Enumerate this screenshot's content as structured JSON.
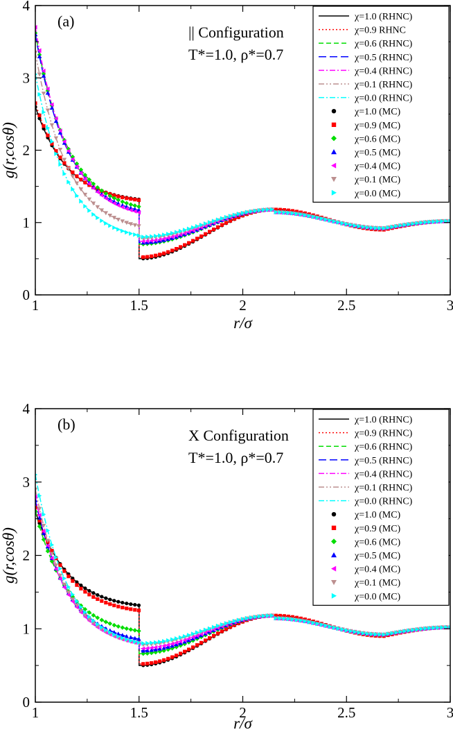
{
  "chart_data": [
    {
      "type": "line",
      "panel_label": "(a)",
      "annotation_line1": "|| Configuration",
      "annotation_line2": "T*=1.0, ρ*=0.7",
      "xlabel": "r/σ",
      "ylabel": "g(r,cosθ)",
      "xlim": [
        1,
        3
      ],
      "ylim": [
        0,
        4
      ],
      "x_ticks": [
        1,
        1.5,
        2,
        2.5,
        3
      ],
      "x_tick_labels": [
        "1",
        "1.5",
        "2",
        "2.5",
        "3"
      ],
      "y_ticks": [
        0,
        1,
        2,
        3,
        4
      ],
      "y_tick_labels": [
        "0",
        "1",
        "2",
        "3",
        "4"
      ],
      "legend_position": "top-right",
      "series": [
        {
          "name": "χ=1.0 (RHNC)",
          "kind": "line",
          "color": "#000000",
          "dash": "solid",
          "contact": 2.6,
          "step_left": 1.32,
          "step_right": 0.5
        },
        {
          "name": "χ=0.9  RHNC",
          "kind": "line",
          "color": "#ff0000",
          "dash": "dotted",
          "contact": 2.65,
          "step_left": 1.31,
          "step_right": 0.52
        },
        {
          "name": "χ=0.6 (RHNC)",
          "kind": "line",
          "color": "#00dd00",
          "dash": "dashed",
          "contact": 3.62,
          "step_left": 1.22,
          "step_right": 0.7
        },
        {
          "name": "χ=0.5 (RHNC)",
          "kind": "line",
          "color": "#0000ff",
          "dash": "longdash",
          "contact": 3.6,
          "step_left": 1.17,
          "step_right": 0.72
        },
        {
          "name": "χ=0.4 (RHNC)",
          "kind": "line",
          "color": "#ff00ff",
          "dash": "dashdot",
          "contact": 3.7,
          "step_left": 1.14,
          "step_right": 0.74
        },
        {
          "name": "χ=0.1 (RHNC)",
          "kind": "line",
          "color": "#bc8f8f",
          "dash": "dashdotdot",
          "contact": 3.35,
          "step_left": 0.95,
          "step_right": 0.78
        },
        {
          "name": "χ=0.0 (RHNC)",
          "kind": "line",
          "color": "#00ffff",
          "dash": "dashdot",
          "contact": 3.05,
          "step_left": 0.82,
          "step_right": 0.8
        },
        {
          "name": "χ=1.0 (MC)",
          "kind": "marker",
          "marker": "circle",
          "color": "#000000",
          "contact": 2.6,
          "step_left": 1.32,
          "step_right": 0.5
        },
        {
          "name": "χ=0.9 (MC)",
          "kind": "marker",
          "marker": "square",
          "color": "#ff0000",
          "contact": 2.65,
          "step_left": 1.31,
          "step_right": 0.52
        },
        {
          "name": "χ=0.6 (MC)",
          "kind": "marker",
          "marker": "diamond",
          "color": "#00dd00",
          "contact": 3.62,
          "step_left": 1.22,
          "step_right": 0.7
        },
        {
          "name": "χ=0.5 (MC)",
          "kind": "marker",
          "marker": "triangle-up",
          "color": "#0000ff",
          "contact": 3.6,
          "step_left": 1.17,
          "step_right": 0.72
        },
        {
          "name": "χ=0.4 (MC)",
          "kind": "marker",
          "marker": "triangle-left",
          "color": "#ff00ff",
          "contact": 3.7,
          "step_left": 1.14,
          "step_right": 0.74
        },
        {
          "name": "χ=0.1 (MC)",
          "kind": "marker",
          "marker": "triangle-down",
          "color": "#bc8f8f",
          "contact": 3.35,
          "step_left": 0.95,
          "step_right": 0.78
        },
        {
          "name": "χ=0.0 (MC)",
          "kind": "marker",
          "marker": "triangle-right",
          "color": "#00ffff",
          "contact": 3.05,
          "step_left": 0.82,
          "step_right": 0.8
        }
      ]
    },
    {
      "type": "line",
      "panel_label": "(b)",
      "annotation_line1": "X Configuration",
      "annotation_line2": "T*=1.0, ρ*=0.7",
      "xlabel": "r/σ",
      "ylabel": "g(r,cosθ)",
      "xlim": [
        1,
        3
      ],
      "ylim": [
        0,
        4
      ],
      "x_ticks": [
        1,
        1.5,
        2,
        2.5,
        3
      ],
      "x_tick_labels": [
        "1",
        "1.5",
        "2",
        "2.5",
        "3"
      ],
      "y_ticks": [
        0,
        1,
        2,
        3,
        4
      ],
      "y_tick_labels": [
        "0",
        "1",
        "2",
        "3",
        "4"
      ],
      "legend_position": "top-right",
      "series": [
        {
          "name": "χ=1.0 (RHNC)",
          "kind": "line",
          "color": "#000000",
          "dash": "solid",
          "contact": 2.6,
          "step_left": 1.32,
          "step_right": 0.5
        },
        {
          "name": "χ=0.9 (RHNC)",
          "kind": "line",
          "color": "#ff0000",
          "dash": "dotted",
          "contact": 2.65,
          "step_left": 1.25,
          "step_right": 0.52
        },
        {
          "name": "χ=0.6 (RHNC)",
          "kind": "line",
          "color": "#00dd00",
          "dash": "dashed",
          "contact": 2.6,
          "step_left": 0.97,
          "step_right": 0.66
        },
        {
          "name": "χ=0.5 (RHNC)",
          "kind": "line",
          "color": "#0000ff",
          "dash": "longdash",
          "contact": 2.75,
          "step_left": 0.86,
          "step_right": 0.7
        },
        {
          "name": "χ=0.4 (RHNC)",
          "kind": "line",
          "color": "#ff00ff",
          "dash": "dashdot",
          "contact": 2.8,
          "step_left": 0.8,
          "step_right": 0.73
        },
        {
          "name": "χ=0.1 (RHNC)",
          "kind": "line",
          "color": "#bc8f8f",
          "dash": "dashdotdot",
          "contact": 2.9,
          "step_left": 0.8,
          "step_right": 0.78
        },
        {
          "name": "χ=0.0 (RHNC)",
          "kind": "line",
          "color": "#00ffff",
          "dash": "dashdot",
          "contact": 3.1,
          "step_left": 0.81,
          "step_right": 0.8
        },
        {
          "name": "χ=1.0 (MC)",
          "kind": "marker",
          "marker": "circle",
          "color": "#000000",
          "contact": 2.6,
          "step_left": 1.32,
          "step_right": 0.5
        },
        {
          "name": "χ=0.9 (MC)",
          "kind": "marker",
          "marker": "square",
          "color": "#ff0000",
          "contact": 2.65,
          "step_left": 1.25,
          "step_right": 0.52
        },
        {
          "name": "χ=0.6 (MC)",
          "kind": "marker",
          "marker": "diamond",
          "color": "#00dd00",
          "contact": 2.6,
          "step_left": 0.97,
          "step_right": 0.66
        },
        {
          "name": "χ=0.5 (MC)",
          "kind": "marker",
          "marker": "triangle-up",
          "color": "#0000ff",
          "contact": 2.75,
          "step_left": 0.86,
          "step_right": 0.7
        },
        {
          "name": "χ=0.4 (MC)",
          "kind": "marker",
          "marker": "triangle-left",
          "color": "#ff00ff",
          "contact": 2.8,
          "step_left": 0.8,
          "step_right": 0.73
        },
        {
          "name": "χ=0.1 (MC)",
          "kind": "marker",
          "marker": "triangle-down",
          "color": "#bc8f8f",
          "contact": 2.9,
          "step_left": 0.8,
          "step_right": 0.78
        },
        {
          "name": "χ=0.0 (MC)",
          "kind": "marker",
          "marker": "triangle-right",
          "color": "#00ffff",
          "contact": 3.1,
          "step_left": 0.81,
          "step_right": 0.8
        }
      ]
    }
  ]
}
